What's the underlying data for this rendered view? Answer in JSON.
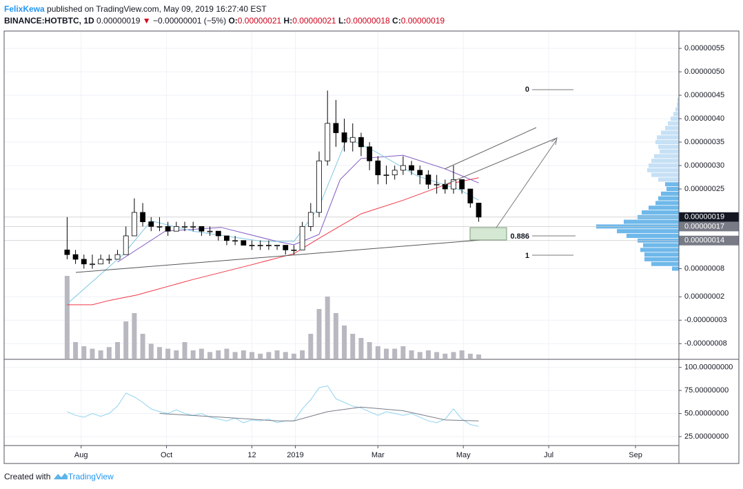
{
  "header": {
    "author": "FelixKewa",
    "published": "published on TradingView.com, May 09, 2019 16:27:40 EST",
    "symbol": "BINANCE:HOTBTC, 1D",
    "last": "0.00000019",
    "arrow": "▼",
    "change": "−0.00000001 (−5%)",
    "o_label": "O:",
    "o": "0.00000021",
    "h_label": "H:",
    "h": "0.00000021",
    "l_label": "L:",
    "l": "0.00000018",
    "c_label": "C:",
    "c": "0.00000019"
  },
  "footer": {
    "created": "Created with",
    "brand": "TradingView"
  },
  "fib_labels": [
    "0",
    "0.886",
    "1"
  ],
  "chart_data": {
    "type": "candlestick",
    "grid": true,
    "grid_color": "#eef1f6",
    "up_color": "#ffffff",
    "down_color": "#000000",
    "volume_color": "#b8b8c0",
    "xlim": [
      -55,
      427
    ],
    "xticks": [
      {
        "value": 0,
        "label": "Aug"
      },
      {
        "value": 61,
        "label": "Oct"
      },
      {
        "value": 122,
        "label": "12"
      },
      {
        "value": 153,
        "label": "2019"
      },
      {
        "value": 212,
        "label": "Mar"
      },
      {
        "value": 273,
        "label": "May"
      },
      {
        "value": 334,
        "label": "Jul"
      },
      {
        "value": 396,
        "label": "Sep"
      }
    ],
    "ylim": [
      -1.12e-07,
      5.87e-07
    ],
    "yticks": [
      {
        "value": 5.5e-07,
        "label": "0.00000055"
      },
      {
        "value": 5e-07,
        "label": "0.00000050"
      },
      {
        "value": 4.5e-07,
        "label": "0.00000045"
      },
      {
        "value": 4e-07,
        "label": "0.00000040"
      },
      {
        "value": 3.5e-07,
        "label": "0.00000035"
      },
      {
        "value": 3e-07,
        "label": "0.00000030"
      },
      {
        "value": 2.5e-07,
        "label": "0.00000025"
      },
      {
        "value": 8e-08,
        "label": "0.00000008"
      },
      {
        "value": 2e-08,
        "label": "0.00000002"
      },
      {
        "value": -3e-08,
        "label": "-0.00000003"
      },
      {
        "value": -8e-08,
        "label": "-0.00000008"
      }
    ],
    "price_labels": [
      {
        "value": 1.9e-07,
        "label": "0.00000019",
        "color": "#131722"
      },
      {
        "value": 1.7e-07,
        "label": "0.00000017",
        "color": "#787b86"
      },
      {
        "value": 1.4e-07,
        "label": "0.00000014",
        "color": "#787b86"
      }
    ],
    "candles": [
      {
        "x": -10,
        "open": 1.2e-07,
        "high": 1.9e-07,
        "low": 1e-07,
        "close": 1.1e-07,
        "volume": 100
      },
      {
        "x": -4,
        "open": 1.1e-07,
        "high": 1.2e-07,
        "low": 9e-08,
        "close": 1e-07,
        "volume": 20
      },
      {
        "x": 2,
        "open": 1e-07,
        "high": 1.1e-07,
        "low": 8e-08,
        "close": 9e-08,
        "volume": 15
      },
      {
        "x": 8,
        "open": 9e-08,
        "high": 1.1e-07,
        "low": 8e-08,
        "close": 9e-08,
        "volume": 12
      },
      {
        "x": 14,
        "open": 9e-08,
        "high": 1.1e-07,
        "low": 9e-08,
        "close": 1e-07,
        "volume": 10
      },
      {
        "x": 20,
        "open": 1e-07,
        "high": 1.1e-07,
        "low": 9e-08,
        "close": 1e-07,
        "volume": 14
      },
      {
        "x": 26,
        "open": 1e-07,
        "high": 1.2e-07,
        "low": 1e-07,
        "close": 1.1e-07,
        "volume": 20
      },
      {
        "x": 32,
        "open": 1.1e-07,
        "high": 1.7e-07,
        "low": 1.1e-07,
        "close": 1.5e-07,
        "volume": 45
      },
      {
        "x": 38,
        "open": 1.5e-07,
        "high": 2.3e-07,
        "low": 1.5e-07,
        "close": 2e-07,
        "volume": 55
      },
      {
        "x": 44,
        "open": 2e-07,
        "high": 2.2e-07,
        "low": 1.7e-07,
        "close": 1.8e-07,
        "volume": 30
      },
      {
        "x": 50,
        "open": 1.8e-07,
        "high": 1.9e-07,
        "low": 1.6e-07,
        "close": 1.7e-07,
        "volume": 18
      },
      {
        "x": 56,
        "open": 1.7e-07,
        "high": 1.9e-07,
        "low": 1.6e-07,
        "close": 1.7e-07,
        "volume": 14
      },
      {
        "x": 62,
        "open": 1.7e-07,
        "high": 1.8e-07,
        "low": 1.5e-07,
        "close": 1.6e-07,
        "volume": 12
      },
      {
        "x": 68,
        "open": 1.6e-07,
        "high": 1.8e-07,
        "low": 1.6e-07,
        "close": 1.7e-07,
        "volume": 10
      },
      {
        "x": 74,
        "open": 1.7e-07,
        "high": 1.8e-07,
        "low": 1.6e-07,
        "close": 1.7e-07,
        "volume": 20
      },
      {
        "x": 80,
        "open": 1.7e-07,
        "high": 1.8e-07,
        "low": 1.6e-07,
        "close": 1.7e-07,
        "volume": 10
      },
      {
        "x": 86,
        "open": 1.7e-07,
        "high": 1.7e-07,
        "low": 1.5e-07,
        "close": 1.6e-07,
        "volume": 12
      },
      {
        "x": 92,
        "open": 1.6e-07,
        "high": 1.7e-07,
        "low": 1.5e-07,
        "close": 1.6e-07,
        "volume": 8
      },
      {
        "x": 98,
        "open": 1.6e-07,
        "high": 1.6e-07,
        "low": 1.4e-07,
        "close": 1.5e-07,
        "volume": 10
      },
      {
        "x": 104,
        "open": 1.5e-07,
        "high": 1.5e-07,
        "low": 1.3e-07,
        "close": 1.4e-07,
        "volume": 12
      },
      {
        "x": 110,
        "open": 1.4e-07,
        "high": 1.5e-07,
        "low": 1.3e-07,
        "close": 1.4e-07,
        "volume": 8
      },
      {
        "x": 116,
        "open": 1.4e-07,
        "high": 1.4e-07,
        "low": 1.3e-07,
        "close": 1.3e-07,
        "volume": 10
      },
      {
        "x": 122,
        "open": 1.3e-07,
        "high": 1.4e-07,
        "low": 1.2e-07,
        "close": 1.3e-07,
        "volume": 8
      },
      {
        "x": 128,
        "open": 1.3e-07,
        "high": 1.4e-07,
        "low": 1.2e-07,
        "close": 1.3e-07,
        "volume": 6
      },
      {
        "x": 134,
        "open": 1.3e-07,
        "high": 1.4e-07,
        "low": 1.2e-07,
        "close": 1.3e-07,
        "volume": 8
      },
      {
        "x": 140,
        "open": 1.3e-07,
        "high": 1.3e-07,
        "low": 1.2e-07,
        "close": 1.3e-07,
        "volume": 10
      },
      {
        "x": 146,
        "open": 1.3e-07,
        "high": 1.3e-07,
        "low": 1.1e-07,
        "close": 1.2e-07,
        "volume": 8
      },
      {
        "x": 152,
        "open": 1.2e-07,
        "high": 1.3e-07,
        "low": 1.1e-07,
        "close": 1.2e-07,
        "volume": 6
      },
      {
        "x": 158,
        "open": 1.2e-07,
        "high": 1.8e-07,
        "low": 1.2e-07,
        "close": 1.7e-07,
        "volume": 10
      },
      {
        "x": 164,
        "open": 1.7e-07,
        "high": 2.2e-07,
        "low": 1.6e-07,
        "close": 2e-07,
        "volume": 30
      },
      {
        "x": 170,
        "open": 2e-07,
        "high": 3.3e-07,
        "low": 1.9e-07,
        "close": 3.1e-07,
        "volume": 60
      },
      {
        "x": 176,
        "open": 3.1e-07,
        "high": 4.6e-07,
        "low": 3e-07,
        "close": 3.9e-07,
        "volume": 75
      },
      {
        "x": 182,
        "open": 3.9e-07,
        "high": 4.4e-07,
        "low": 3.4e-07,
        "close": 3.7e-07,
        "volume": 55
      },
      {
        "x": 188,
        "open": 3.7e-07,
        "high": 4e-07,
        "low": 3.3e-07,
        "close": 3.5e-07,
        "volume": 40
      },
      {
        "x": 194,
        "open": 3.5e-07,
        "high": 3.9e-07,
        "low": 3.3e-07,
        "close": 3.6e-07,
        "volume": 30
      },
      {
        "x": 200,
        "open": 3.6e-07,
        "high": 3.7e-07,
        "low": 3.2e-07,
        "close": 3.4e-07,
        "volume": 25
      },
      {
        "x": 206,
        "open": 3.4e-07,
        "high": 3.5e-07,
        "low": 2.9e-07,
        "close": 3.1e-07,
        "volume": 20
      },
      {
        "x": 212,
        "open": 3.1e-07,
        "high": 3.2e-07,
        "low": 2.6e-07,
        "close": 2.8e-07,
        "volume": 15
      },
      {
        "x": 218,
        "open": 2.8e-07,
        "high": 3e-07,
        "low": 2.6e-07,
        "close": 2.8e-07,
        "volume": 12
      },
      {
        "x": 224,
        "open": 2.8e-07,
        "high": 3e-07,
        "low": 2.7e-07,
        "close": 2.9e-07,
        "volume": 12
      },
      {
        "x": 230,
        "open": 2.9e-07,
        "high": 3.2e-07,
        "low": 2.8e-07,
        "close": 3e-07,
        "volume": 15
      },
      {
        "x": 236,
        "open": 3e-07,
        "high": 3.1e-07,
        "low": 2.8e-07,
        "close": 2.9e-07,
        "volume": 10
      },
      {
        "x": 242,
        "open": 2.9e-07,
        "high": 3e-07,
        "low": 2.6e-07,
        "close": 2.8e-07,
        "volume": 8
      },
      {
        "x": 248,
        "open": 2.8e-07,
        "high": 2.9e-07,
        "low": 2.5e-07,
        "close": 2.6e-07,
        "volume": 10
      },
      {
        "x": 254,
        "open": 2.6e-07,
        "high": 2.8e-07,
        "low": 2.4e-07,
        "close": 2.6e-07,
        "volume": 8
      },
      {
        "x": 260,
        "open": 2.6e-07,
        "high": 2.7e-07,
        "low": 2.4e-07,
        "close": 2.5e-07,
        "volume": 6
      },
      {
        "x": 266,
        "open": 2.5e-07,
        "high": 3e-07,
        "low": 2.4e-07,
        "close": 2.7e-07,
        "volume": 8
      },
      {
        "x": 272,
        "open": 2.7e-07,
        "high": 2.7e-07,
        "low": 2.4e-07,
        "close": 2.5e-07,
        "volume": 10
      },
      {
        "x": 278,
        "open": 2.5e-07,
        "high": 2.5e-07,
        "low": 2.1e-07,
        "close": 2.2e-07,
        "volume": 6
      },
      {
        "x": 284,
        "open": 2.2e-07,
        "high": 2.2e-07,
        "low": 1.8e-07,
        "close": 1.9e-07,
        "volume": 5
      }
    ],
    "moving_averages": [
      {
        "color": "#f23645",
        "x": [
          -10,
          8,
          20,
          40,
          80,
          120,
          152,
          170,
          200,
          230,
          260,
          284
        ],
        "values": [
          3e-09,
          3e-09,
          1.2e-08,
          2.4e-08,
          5.7e-08,
          8.7e-08,
          1.12e-07,
          1.45e-07,
          1.97e-07,
          2.26e-07,
          2.59e-07,
          2.74e-07
        ]
      },
      {
        "color": "#7e57c2",
        "x": [
          26,
          60,
          100,
          140,
          152,
          170,
          185,
          200,
          230,
          260,
          284
        ],
        "values": [
          9.4e-08,
          1.6e-07,
          1.68e-07,
          1.38e-07,
          1.31e-07,
          1.53e-07,
          2.7e-07,
          3.15e-07,
          3.22e-07,
          2.93e-07,
          2.63e-07
        ]
      },
      {
        "color": "#7ec8e3",
        "x": [
          -10,
          30,
          50,
          80,
          130,
          152,
          170,
          190,
          210,
          240,
          270,
          284
        ],
        "values": [
          5e-09,
          1.1e-07,
          1.82e-07,
          1.6e-07,
          1.38e-07,
          1.38e-07,
          2.12e-07,
          3.59e-07,
          3.3e-07,
          2.78e-07,
          2.49e-07,
          2.26e-07
        ]
      }
    ],
    "volume_profile": [
      {
        "color": "#c6e0f5",
        "prices": [
          4.4e-07,
          4.3e-07,
          4.2e-07,
          4.1e-07,
          4e-07,
          3.9e-07,
          3.8e-07,
          3.7e-07,
          3.6e-07,
          3.5e-07,
          3.4e-07,
          3.3e-07,
          3.2e-07,
          3.1e-07,
          3e-07,
          2.9e-07,
          2.8e-07,
          2.7e-07
        ],
        "values": [
          2,
          3,
          5,
          8,
          12,
          16,
          20,
          26,
          32,
          34,
          30,
          28,
          36,
          40,
          44,
          46,
          40,
          30
        ]
      },
      {
        "color": "#6fb8ea",
        "prices": [
          2.6e-07,
          2.5e-07,
          2.4e-07,
          2.3e-07,
          2.2e-07,
          2.1e-07,
          2e-07,
          1.9e-07,
          1.8e-07,
          1.7e-07,
          1.6e-07,
          1.5e-07,
          1.4e-07,
          1.3e-07,
          1.2e-07,
          1.1e-07,
          1e-07,
          9e-08,
          8e-08
        ],
        "values": [
          20,
          18,
          26,
          30,
          34,
          44,
          54,
          60,
          80,
          120,
          90,
          76,
          60,
          52,
          56,
          50,
          50,
          40,
          10
        ]
      }
    ],
    "rsi": {
      "color": "#8fd3ef",
      "ma_color": "#787b86",
      "ylim": [
        16,
        108
      ],
      "yticks": [
        {
          "value": 100,
          "label": "100.00000000"
        },
        {
          "value": 75,
          "label": "75.00000000"
        },
        {
          "value": 50,
          "label": "50.00000000"
        },
        {
          "value": 25,
          "label": "25.00000000"
        }
      ],
      "x": [
        -10,
        -4,
        2,
        8,
        14,
        20,
        26,
        32,
        38,
        44,
        50,
        56,
        62,
        68,
        74,
        80,
        86,
        92,
        98,
        104,
        110,
        116,
        122,
        128,
        134,
        140,
        146,
        152,
        158,
        164,
        170,
        176,
        182,
        188,
        194,
        200,
        206,
        212,
        218,
        224,
        230,
        236,
        242,
        248,
        254,
        260,
        266,
        272,
        278,
        284
      ],
      "values": [
        52,
        48,
        46,
        50,
        47,
        50,
        58,
        72,
        68,
        62,
        55,
        52,
        50,
        54,
        50,
        48,
        50,
        46,
        44,
        42,
        45,
        40,
        43,
        42,
        44,
        40,
        42,
        42,
        55,
        65,
        78,
        80,
        66,
        62,
        58,
        56,
        52,
        48,
        52,
        50,
        48,
        50,
        46,
        42,
        40,
        44,
        55,
        44,
        38,
        36
      ],
      "ma_x": [
        56,
        100,
        140,
        152,
        176,
        200,
        230,
        260,
        284
      ],
      "ma_values": [
        50,
        46,
        42,
        42,
        52,
        57,
        53,
        43,
        42
      ]
    }
  }
}
